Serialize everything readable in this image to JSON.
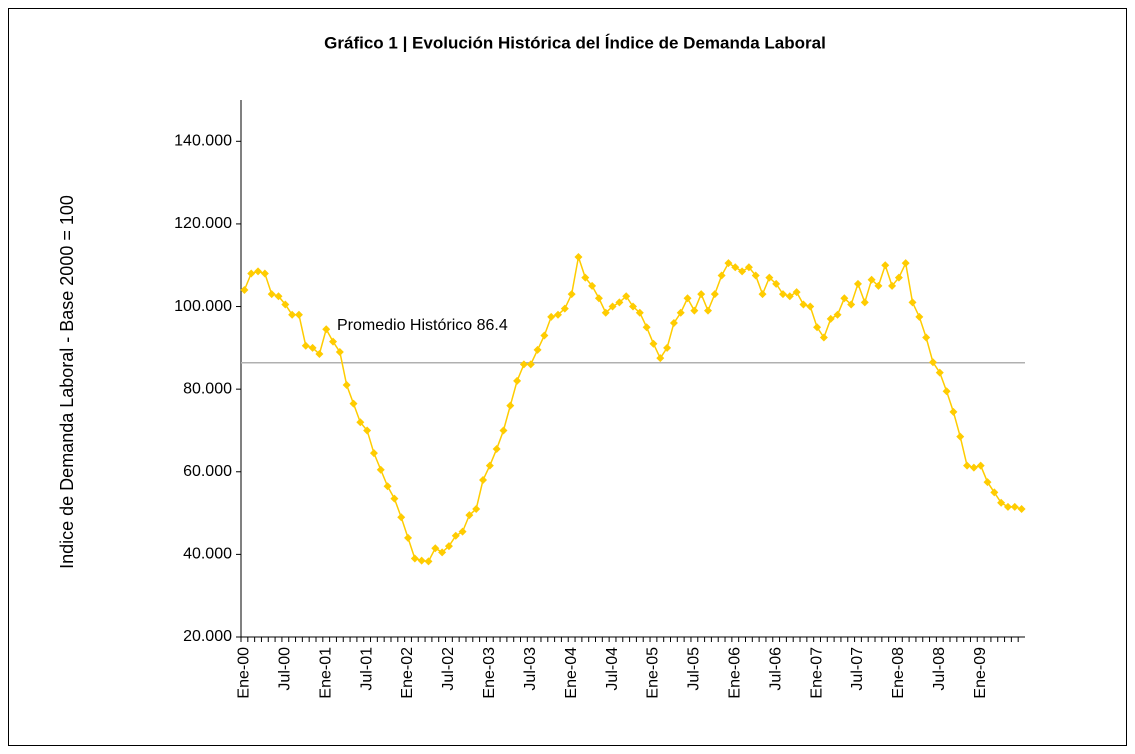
{
  "chart_data": {
    "type": "line",
    "title": "Gráfico 1 | Evolución Histórica del Índice de Demanda Laboral",
    "y_label": "Indice de Demanda Laboral - Base 2000 = 100",
    "categories": [
      "Ene-00",
      null,
      null,
      null,
      null,
      null,
      "Jul-00",
      null,
      null,
      null,
      null,
      null,
      "Ene-01",
      null,
      null,
      null,
      null,
      null,
      "Jul-01",
      null,
      null,
      null,
      null,
      null,
      "Ene-02",
      null,
      null,
      null,
      null,
      null,
      "Jul-02",
      null,
      null,
      null,
      null,
      null,
      "Ene-03",
      null,
      null,
      null,
      null,
      null,
      "Jul-03",
      null,
      null,
      null,
      null,
      null,
      "Ene-04",
      null,
      null,
      null,
      null,
      null,
      "Jul-04",
      null,
      null,
      null,
      null,
      null,
      "Ene-05",
      null,
      null,
      null,
      null,
      null,
      "Jul-05",
      null,
      null,
      null,
      null,
      null,
      "Ene-06",
      null,
      null,
      null,
      null,
      null,
      "Jul-06",
      null,
      null,
      null,
      null,
      null,
      "Ene-07",
      null,
      null,
      null,
      null,
      null,
      "Jul-07",
      null,
      null,
      null,
      null,
      null,
      "Ene-08",
      null,
      null,
      null,
      null,
      null,
      "Jul-08",
      null,
      null,
      null,
      null,
      null,
      "Ene-09",
      null,
      null,
      null,
      null,
      null,
      null
    ],
    "values": [
      104,
      108,
      108.5,
      108,
      103,
      102.5,
      100.5,
      98,
      98,
      90.5,
      90,
      88.5,
      94.5,
      91.5,
      89,
      81,
      76.5,
      72,
      70,
      64.5,
      60.5,
      56.5,
      53.5,
      49,
      44,
      39,
      38.5,
      38.3,
      41.5,
      40.5,
      42,
      44.5,
      45.5,
      49.5,
      51,
      58,
      61.5,
      65.5,
      70,
      76,
      82,
      86,
      86,
      89.5,
      93,
      97.5,
      98,
      99.5,
      103,
      112,
      107,
      105,
      102,
      98.5,
      100,
      101,
      102.5,
      100,
      98.5,
      95,
      91,
      87.5,
      90,
      96,
      98.5,
      102,
      99,
      103,
      99,
      103,
      107.5,
      110.5,
      109.5,
      108.5,
      109.5,
      107.5,
      103,
      107,
      105.5,
      103,
      102.5,
      103.5,
      100.5,
      100,
      95,
      92.5,
      97,
      98,
      102,
      100.5,
      105.5,
      101,
      106.5,
      105,
      110,
      105,
      107,
      110.5,
      101,
      97.5,
      92.5,
      86.5,
      84,
      79.5,
      74.5,
      68.5,
      61.5,
      61,
      61.5,
      57.5,
      55,
      52.5,
      51.5,
      51.5,
      51
    ],
    "color": "#FFCC00",
    "average_line": {
      "value": 86.4,
      "label": "Promedio Histórico 86.4",
      "color": "#b0b0b0"
    },
    "ylim": [
      20,
      150
    ],
    "yticks": [
      {
        "value": 20,
        "label": "20.000"
      },
      {
        "value": 40,
        "label": "40.000"
      },
      {
        "value": 60,
        "label": "60.000"
      },
      {
        "value": 80,
        "label": "80.000"
      },
      {
        "value": 100,
        "label": "100.000"
      },
      {
        "value": 120,
        "label": "120.000"
      },
      {
        "value": 140,
        "label": "140.000"
      }
    ],
    "grid": false
  }
}
